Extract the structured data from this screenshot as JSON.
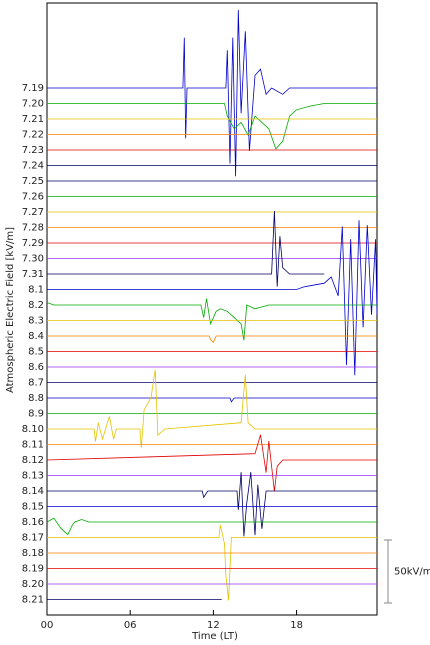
{
  "chart_data": {
    "type": "stacked-line",
    "x_label": "Time (LT)",
    "y_label": "Atmospheric Electric Field [kV/m]",
    "xlim": [
      0,
      23.8
    ],
    "xticks": [
      {
        "value": 0,
        "label": "00"
      },
      {
        "value": 6,
        "label": "06"
      },
      12,
      18
    ],
    "scale_bar": {
      "value": 50,
      "label": "50kV/m"
    },
    "series": [
      {
        "name": "7.19",
        "color": "#0000cc",
        "x": [
          0,
          9.8,
          9.9,
          10,
          10.1,
          12.9,
          13.0,
          13.2,
          13.4,
          13.6,
          13.8,
          14.0,
          14.3,
          14.6,
          15.0,
          15.4,
          15.8,
          16.2,
          17.0,
          17.5,
          23.8
        ],
        "values": [
          0,
          0,
          40,
          -40,
          0,
          0,
          30,
          -60,
          40,
          -70,
          62,
          -20,
          45,
          -50,
          10,
          15,
          -5,
          0,
          -5,
          0,
          0
        ]
      },
      {
        "name": "7.20",
        "color": "#00aa00",
        "x": [
          0,
          12.8,
          13.0,
          13.5,
          14.0,
          14.5,
          15.0,
          15.5,
          16.0,
          16.5,
          17.0,
          17.5,
          18,
          19,
          20,
          23.8
        ],
        "values": [
          0,
          0,
          -10,
          -20,
          -15,
          -25,
          -10,
          -15,
          -20,
          -36,
          -30,
          -10,
          -5,
          -2,
          0,
          0
        ]
      },
      {
        "name": "7.21",
        "color": "#e6c200",
        "x": [
          0,
          23.8
        ],
        "values": [
          0,
          0
        ]
      },
      {
        "name": "7.22",
        "color": "#ff7f00",
        "x": [
          0,
          23.8
        ],
        "values": [
          0,
          0
        ]
      },
      {
        "name": "7.23",
        "color": "#e00000",
        "x": [
          0,
          23.8
        ],
        "values": [
          0,
          0
        ]
      },
      {
        "name": "7.24",
        "color": "#000066",
        "x": [
          0,
          23.8
        ],
        "values": [
          0,
          0
        ]
      },
      {
        "name": "7.25",
        "color": "#000066",
        "x": [
          0,
          23.8
        ],
        "values": [
          0,
          0
        ]
      },
      {
        "name": "7.26",
        "color": "#00aa00",
        "x": [
          0,
          23.8
        ],
        "values": [
          0,
          0
        ]
      },
      {
        "name": "7.27",
        "color": "#e6c200",
        "x": [
          0,
          23.8
        ],
        "values": [
          0,
          0
        ]
      },
      {
        "name": "7.28",
        "color": "#ff7f00",
        "x": [
          0,
          23.8
        ],
        "values": [
          0,
          0
        ]
      },
      {
        "name": "7.29",
        "color": "#e00000",
        "x": [
          0,
          23.8
        ],
        "values": [
          0,
          0
        ]
      },
      {
        "name": "7.30",
        "color": "#9933ff",
        "x": [
          0,
          23.8
        ],
        "values": [
          0,
          0
        ]
      },
      {
        "name": "7.31",
        "color": "#000066",
        "x": [
          0,
          16.2,
          16.4,
          16.6,
          16.8,
          17.0,
          17.5,
          20.0
        ],
        "values": [
          0,
          0,
          50,
          -10,
          30,
          5,
          0,
          0
        ]
      },
      {
        "name": "8.1",
        "color": "#0000cc",
        "x": [
          0,
          18,
          18.5,
          19,
          20,
          20.5,
          21,
          21.3,
          21.6,
          21.9,
          22.2,
          22.5,
          22.8,
          23.1,
          23.4,
          23.7,
          23.8
        ],
        "values": [
          0,
          0,
          2,
          3,
          5,
          10,
          -5,
          50,
          -60,
          40,
          -68,
          55,
          -30,
          51,
          -20,
          40,
          -20
        ]
      },
      {
        "name": "8.2",
        "color": "#00aa00",
        "x": [
          0,
          0.5,
          11.1,
          11.3,
          11.5,
          11.8,
          12.2,
          12.5,
          13,
          13.5,
          14,
          14.2,
          14.4,
          15,
          16,
          23.8
        ],
        "values": [
          2,
          0,
          0,
          -10,
          5,
          -15,
          -5,
          -3,
          -5,
          -10,
          -15,
          -28,
          0,
          -3,
          0,
          0
        ]
      },
      {
        "name": "8.3",
        "color": "#e6c200",
        "x": [
          0,
          23.8
        ],
        "values": [
          0,
          0
        ]
      },
      {
        "name": "8.4",
        "color": "#ff7f00",
        "x": [
          0,
          11.7,
          11.8,
          12.0,
          12.2,
          23.8
        ],
        "values": [
          0,
          0,
          -3,
          -5,
          0,
          0
        ]
      },
      {
        "name": "8.5",
        "color": "#e00000",
        "x": [
          0,
          23.8
        ],
        "values": [
          0,
          0
        ]
      },
      {
        "name": "8.6",
        "color": "#9933ff",
        "x": [
          0,
          23.8
        ],
        "values": [
          0,
          0
        ]
      },
      {
        "name": "8.7",
        "color": "#000066",
        "x": [
          0,
          23.8
        ],
        "values": [
          0,
          0
        ]
      },
      {
        "name": "8.8",
        "color": "#0000cc",
        "x": [
          0,
          13.2,
          13.3,
          13.5,
          23.8
        ],
        "values": [
          0,
          0,
          -3,
          0,
          0
        ]
      },
      {
        "name": "8.9",
        "color": "#00aa00",
        "x": [
          0,
          23.8
        ],
        "values": [
          0,
          0
        ]
      },
      {
        "name": "8.10",
        "color": "#e6c200",
        "x": [
          0,
          3.4,
          3.5,
          3.7,
          4.0,
          4.5,
          4.8,
          5.0,
          6.7,
          6.8,
          7.0,
          7.5,
          7.8,
          8.0,
          8.5,
          14,
          14.3,
          14.5,
          15,
          23.8
        ],
        "values": [
          0,
          0,
          -10,
          5,
          -8,
          10,
          -8,
          0,
          0,
          -15,
          15,
          25,
          47,
          -5,
          0,
          5,
          43,
          5,
          0,
          0
        ]
      },
      {
        "name": "8.11",
        "color": "#ff7f00",
        "x": [
          0,
          23.8
        ],
        "values": [
          0,
          0
        ]
      },
      {
        "name": "8.12",
        "color": "#e00000",
        "x": [
          0,
          15,
          15.4,
          15.8,
          16.0,
          16.4,
          16.6,
          17,
          23.8
        ],
        "values": [
          0,
          5,
          20,
          -10,
          15,
          -25,
          -5,
          0,
          0
        ]
      },
      {
        "name": "8.13",
        "color": "#9933ff",
        "x": [
          0,
          23.8
        ],
        "values": [
          0,
          0
        ]
      },
      {
        "name": "8.14",
        "color": "#000066",
        "x": [
          0,
          11.2,
          11.3,
          11.6,
          13.7,
          13.8,
          14.0,
          14.2,
          14.4,
          14.7,
          15,
          15.2,
          15.5,
          15.8,
          23.8
        ],
        "values": [
          0,
          0,
          -5,
          0,
          0,
          -15,
          15,
          -36,
          -10,
          15,
          -35,
          5,
          -30,
          0,
          0
        ]
      },
      {
        "name": "8.15",
        "color": "#0000cc",
        "x": [
          0,
          23.8
        ],
        "values": [
          0,
          0
        ]
      },
      {
        "name": "8.16",
        "color": "#00aa00",
        "x": [
          0,
          0.5,
          1,
          1.5,
          1.8,
          2,
          2.5,
          3,
          23.8
        ],
        "values": [
          0,
          3,
          -5,
          -10,
          -3,
          0,
          2,
          0,
          0
        ]
      },
      {
        "name": "8.17",
        "color": "#e6c200",
        "x": [
          0,
          12.4,
          12.5,
          12.8,
          12.9,
          13.1,
          13.3,
          23.8
        ],
        "values": [
          0,
          0,
          10,
          -5,
          -30,
          -50,
          0,
          0
        ]
      },
      {
        "name": "8.18",
        "color": "#ff7f00",
        "x": [
          0,
          23.8
        ],
        "values": [
          0,
          0
        ]
      },
      {
        "name": "8.19",
        "color": "#e00000",
        "x": [
          0,
          23.8
        ],
        "values": [
          0,
          0
        ]
      },
      {
        "name": "8.20",
        "color": "#9933ff",
        "x": [
          0,
          23.8
        ],
        "values": [
          0,
          0
        ]
      },
      {
        "name": "8.21",
        "color": "#000066",
        "x": [
          0,
          12.6
        ],
        "values": [
          0,
          0
        ]
      }
    ]
  }
}
